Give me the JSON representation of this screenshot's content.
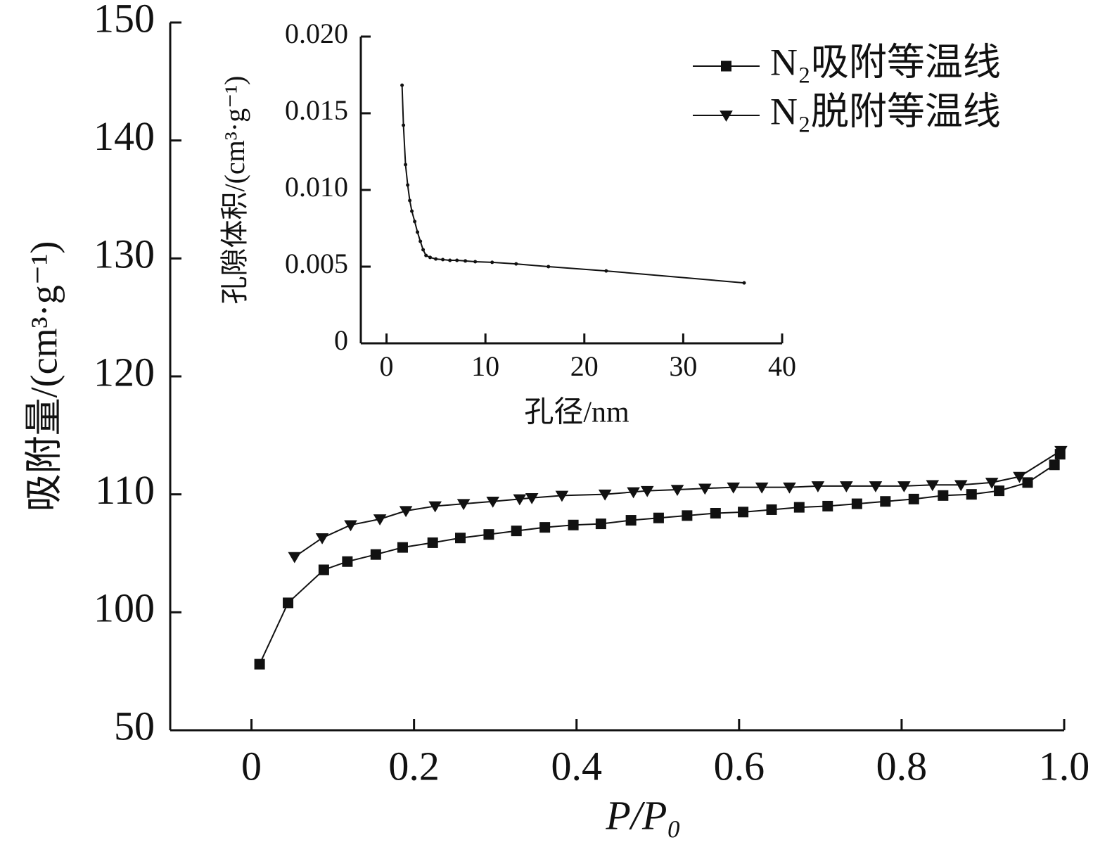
{
  "chart_data": [
    {
      "type": "line",
      "x_label": "P/P₀",
      "y_label": "吸附量/(cm³·g⁻¹)",
      "xlim": [
        -0.1,
        1.0
      ],
      "xticks": [
        0,
        0.2,
        0.4,
        0.6,
        0.8,
        {
          "value": 1.0,
          "label": "1.0"
        }
      ],
      "ylim": [
        50,
        150
      ],
      "ybreak": [
        50,
        90
      ],
      "yticks": [
        50,
        100,
        110,
        120,
        130,
        140,
        150
      ],
      "legend": "upper right",
      "series": [
        {
          "name": "N₂吸附等温线",
          "color": "#111111",
          "marker": "square",
          "x": [
            0.01,
            0.045,
            0.089,
            0.118,
            0.153,
            0.186,
            0.223,
            0.257,
            0.292,
            0.326,
            0.361,
            0.396,
            0.43,
            0.467,
            0.501,
            0.536,
            0.571,
            0.605,
            0.64,
            0.674,
            0.709,
            0.745,
            0.78,
            0.815,
            0.851,
            0.886,
            0.92,
            0.955,
            0.988,
            0.995
          ],
          "values": [
            95.6,
            100.8,
            103.6,
            104.3,
            104.9,
            105.5,
            105.9,
            106.3,
            106.6,
            106.9,
            107.2,
            107.4,
            107.5,
            107.8,
            108.0,
            108.2,
            108.4,
            108.5,
            108.7,
            108.9,
            109.0,
            109.2,
            109.4,
            109.6,
            109.9,
            110.0,
            110.3,
            111.0,
            112.5,
            113.4
          ]
        },
        {
          "name": "N₂脱附等温线",
          "color": "#111111",
          "marker": "triangle-down",
          "x": [
            0.996,
            0.945,
            0.911,
            0.873,
            0.838,
            0.803,
            0.768,
            0.732,
            0.697,
            0.662,
            0.628,
            0.593,
            0.558,
            0.524,
            0.487,
            0.47,
            0.435,
            0.382,
            0.345,
            0.33,
            0.297,
            0.261,
            0.226,
            0.19,
            0.158,
            0.122,
            0.087,
            0.053
          ],
          "values": [
            113.7,
            111.5,
            111.0,
            110.8,
            110.8,
            110.7,
            110.7,
            110.7,
            110.7,
            110.6,
            110.6,
            110.6,
            110.5,
            110.4,
            110.3,
            110.2,
            110.0,
            109.9,
            109.7,
            109.6,
            109.4,
            109.2,
            109.0,
            108.6,
            107.9,
            107.4,
            106.3,
            104.7
          ]
        }
      ]
    },
    {
      "type": "line",
      "x_label": "孔径/nm",
      "y_label": "孔隙体积/(cm³·g⁻¹)",
      "xlim": [
        -2.6,
        40
      ],
      "xticks": [
        0,
        10,
        20,
        30,
        40
      ],
      "ylim": [
        0,
        0.02
      ],
      "yticks": [
        0,
        0.005,
        {
          "value": 0.01,
          "label": "0.010"
        },
        0.015,
        {
          "value": 0.02,
          "label": "0.020"
        }
      ],
      "series": [
        {
          "color": "#111111",
          "marker": "dot",
          "x": [
            1.57,
            1.71,
            1.92,
            2.14,
            2.35,
            2.56,
            2.85,
            3.13,
            3.42,
            3.7,
            3.99,
            4.41,
            4.98,
            5.69,
            6.41,
            7.12,
            7.97,
            8.97,
            10.68,
            13.1,
            16.37,
            22.21,
            36.16
          ],
          "values": [
            0.01683,
            0.01422,
            0.01165,
            0.01032,
            0.00931,
            0.00862,
            0.00794,
            0.00725,
            0.00665,
            0.0061,
            0.00573,
            0.0056,
            0.0055,
            0.00546,
            0.00541,
            0.00541,
            0.00537,
            0.00532,
            0.00528,
            0.00518,
            0.005,
            0.00472,
            0.00394
          ]
        }
      ]
    }
  ]
}
